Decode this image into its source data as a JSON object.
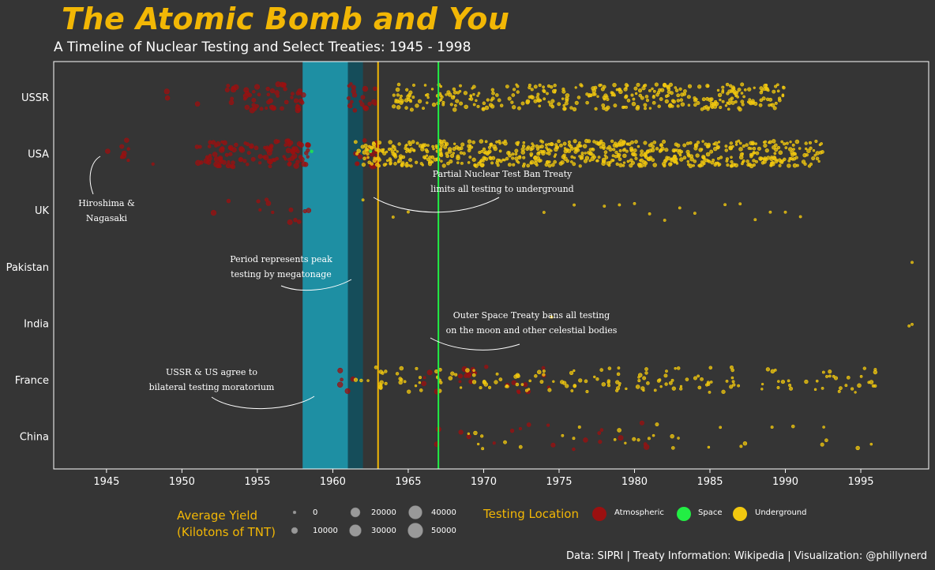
{
  "header": {
    "title": "The Atomic Bomb and You",
    "subtitle": "A Timeline of Nuclear Testing and Select Treaties: 1945 - 1998"
  },
  "caption": "Data: SIPRI | Treaty Information: Wikipedia | Visualization: @phillynerd",
  "legend": {
    "size_title_line1": "Average Yield",
    "size_title_line2": "(Kilotons of TNT)",
    "size_labels": [
      "0",
      "10000",
      "20000",
      "30000",
      "40000",
      "50000"
    ],
    "color_title": "Testing Location",
    "color_labels": [
      "Atmospheric",
      "Space",
      "Underground"
    ]
  },
  "colors": {
    "background": "#353535",
    "title": "#F2B705",
    "atmospheric": "#9B1010",
    "space": "#22EE44",
    "underground": "#F2C80F",
    "moratorium_band": "#1E8FA3",
    "megatonage_band": "#154D5A",
    "ptbt_line": "#F2B705",
    "ost_line": "#22EE44"
  },
  "chart_data": {
    "type": "scatter",
    "title": "The Atomic Bomb and You",
    "subtitle": "A Timeline of Nuclear Testing and Select Treaties: 1945 - 1998",
    "xlabel": "",
    "ylabel": "",
    "xlim": [
      1941.5,
      1999.5
    ],
    "x_ticks": [
      1945,
      1950,
      1955,
      1960,
      1965,
      1970,
      1975,
      1980,
      1985,
      1990,
      1995
    ],
    "categories": [
      "USSR",
      "USA",
      "UK",
      "Pakistan",
      "India",
      "France",
      "China"
    ],
    "grid": false,
    "legend_placement": "bottom",
    "series_note": "points jittered vertically within each country row; color = testing location, size = average yield",
    "countries": [
      {
        "name": "USSR",
        "atmospheric_ranges": [
          [
            1949,
            1949.2
          ],
          [
            1951,
            1951.1
          ],
          [
            1953,
            1958.3
          ],
          [
            1961,
            1962.9
          ]
        ],
        "underground_range": [
          1964,
          1990
        ]
      },
      {
        "name": "USA",
        "atmospheric_ranges": [
          [
            1945,
            1945.1
          ],
          [
            1946,
            1946.5
          ],
          [
            1948,
            1948.1
          ],
          [
            1951,
            1958.5
          ],
          [
            1961.5,
            1963
          ]
        ],
        "underground_range": [
          1961.5,
          1992.5
        ],
        "space_points": [
          1958.6,
          1962.5
        ]
      },
      {
        "name": "UK",
        "atmospheric_ranges": [
          [
            1952,
            1952.1
          ],
          [
            1953,
            1953.2
          ],
          [
            1955,
            1958.6
          ]
        ],
        "underground_points": [
          1962,
          1964,
          1965,
          1974,
          1976,
          1978,
          1979,
          1980,
          1981,
          1982,
          1983,
          1984,
          1986,
          1987,
          1988,
          1989,
          1990,
          1991
        ]
      },
      {
        "name": "Pakistan",
        "underground_points": [
          1998.4
        ]
      },
      {
        "name": "India",
        "underground_points": [
          1974.5,
          1998.2,
          1998.4
        ]
      },
      {
        "name": "France",
        "atmospheric_ranges": [
          [
            1960,
            1961.5
          ],
          [
            1966,
            1974.5
          ]
        ],
        "underground_range": [
          1961.5,
          1996
        ]
      },
      {
        "name": "China",
        "atmospheric_ranges": [
          [
            1964.8,
            1980.8
          ]
        ],
        "underground_range": [
          1969,
          1996
        ]
      }
    ],
    "treaties": [
      {
        "type": "band",
        "x": [
          1958,
          1961
        ],
        "label": "USSR & US agree to bilateral testing moratorium"
      },
      {
        "type": "band",
        "x": [
          1961,
          1962
        ],
        "label": "Period represents peak testing by megatonage"
      },
      {
        "type": "vline",
        "x": 1963,
        "label": "Partial Nuclear Test Ban Treaty limits all testing to underground"
      },
      {
        "type": "vline",
        "x": 1967,
        "label": "Outer Space Treaty bans all testing on the moon and other celestial bodies"
      }
    ],
    "annotations": [
      {
        "x": 1945,
        "country": "USA",
        "text": [
          "Hiroshima &",
          "Nagasaki"
        ]
      },
      {
        "text": [
          "Partial Nuclear Test Ban Treaty",
          "limits all testing to underground"
        ]
      },
      {
        "text": [
          "Period represents peak",
          "testing by megatonage"
        ]
      },
      {
        "text": [
          "Outer Space Treaty bans all testing",
          "on the moon and other celestial bodies"
        ]
      },
      {
        "text": [
          "USSR & US agree to",
          "bilateral testing moratorium"
        ]
      }
    ]
  }
}
